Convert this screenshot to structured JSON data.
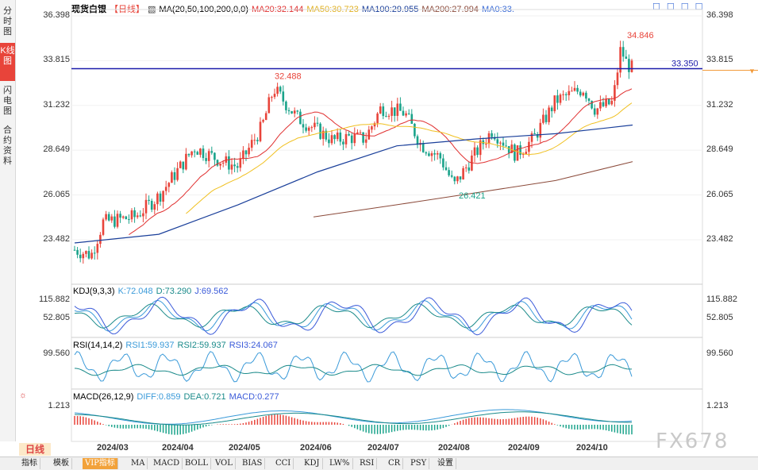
{
  "sidebar": {
    "tabs": [
      {
        "label": "分时图",
        "active": false
      },
      {
        "label": "K线图",
        "active": true
      },
      {
        "label": "闪电图",
        "active": false
      },
      {
        "label": "合约资料",
        "active": false
      }
    ]
  },
  "header": {
    "instrument": "现货白银",
    "period": "【日线】",
    "ma_params": "MA(20,50,100,200,0,0)",
    "ma20": "MA20:32.144",
    "ma50": "MA50:30.723",
    "ma100": "MA100:29.955",
    "ma200": "MA200:27.994",
    "ma0": "MA0:33.",
    "icons": [
      "☐",
      "☐",
      "☐",
      "☐"
    ]
  },
  "colors": {
    "up": "#e8443a",
    "down": "#1aa38a",
    "ma20": "#e03030",
    "ma50": "#f0c020",
    "ma100": "#1a3f9a",
    "ma200": "#8b4a3a",
    "price_line": "#1a1aaa",
    "kdj_k": "#3a9ad9",
    "kdj_d": "#1a8a8a",
    "kdj_j": "#3a5ad9"
  },
  "main_axis": {
    "ticks": [
      "36.398",
      "33.815",
      "31.232",
      "28.649",
      "26.065",
      "23.482"
    ],
    "values": [
      36.398,
      33.815,
      31.232,
      28.649,
      26.065,
      23.482
    ]
  },
  "annotations": {
    "high": "34.846",
    "low": "26.421",
    "mid_high": "32.488",
    "current": "33.350"
  },
  "kdj": {
    "label": "KDJ(9,3,3)",
    "k": "K:72.048",
    "d": "D:73.290",
    "j": "J:69.562",
    "ticks": [
      "115.882",
      "52.805"
    ]
  },
  "rsi": {
    "label": "RSI(14,14,2)",
    "rsi1": "RSI1:59.937",
    "rsi2": "RSI2:59.937",
    "rsi3": "RSI3:24.067",
    "ticks": [
      "99.560"
    ]
  },
  "macd": {
    "label": "MACD(26,12,9)",
    "diff": "DIFF:0.859",
    "dea": "DEA:0.721",
    "macd": "MACD:0.277",
    "ticks": [
      "1.213"
    ]
  },
  "dates": [
    "2024/03",
    "2024/04",
    "2024/05",
    "2024/06",
    "2024/07",
    "2024/08",
    "2024/09",
    "2024/10"
  ],
  "period_button": "日线",
  "toolbar": [
    "指标",
    "模板",
    "VIP指标",
    "MA",
    "MACD",
    "BOLL",
    "VOL",
    "BIAS",
    "CCI",
    "KDJ",
    "LW%",
    "RSI",
    "CR",
    "PSY",
    "设置"
  ],
  "watermark": "FX678",
  "chart_data": {
    "type": "candlestick",
    "series_hint": "Daily silver spot price with MA20/50/100/200, Feb–Oct 2024",
    "ylim": [
      23.0,
      36.4
    ],
    "key_points": [
      {
        "date": "2024/02",
        "price": 22.5
      },
      {
        "date": "2024/03",
        "price": 24.5
      },
      {
        "date": "2024/04",
        "price": 27.5
      },
      {
        "date": "2024/05",
        "price": 32.488
      },
      {
        "date": "2024/06",
        "price": 29.5
      },
      {
        "date": "2024/07",
        "price": 31.0
      },
      {
        "date": "2024/08",
        "price": 26.421
      },
      {
        "date": "2024/09",
        "price": 30.5
      },
      {
        "date": "2024/10",
        "price": 34.846
      },
      {
        "date": "last",
        "price": 33.35
      }
    ]
  }
}
